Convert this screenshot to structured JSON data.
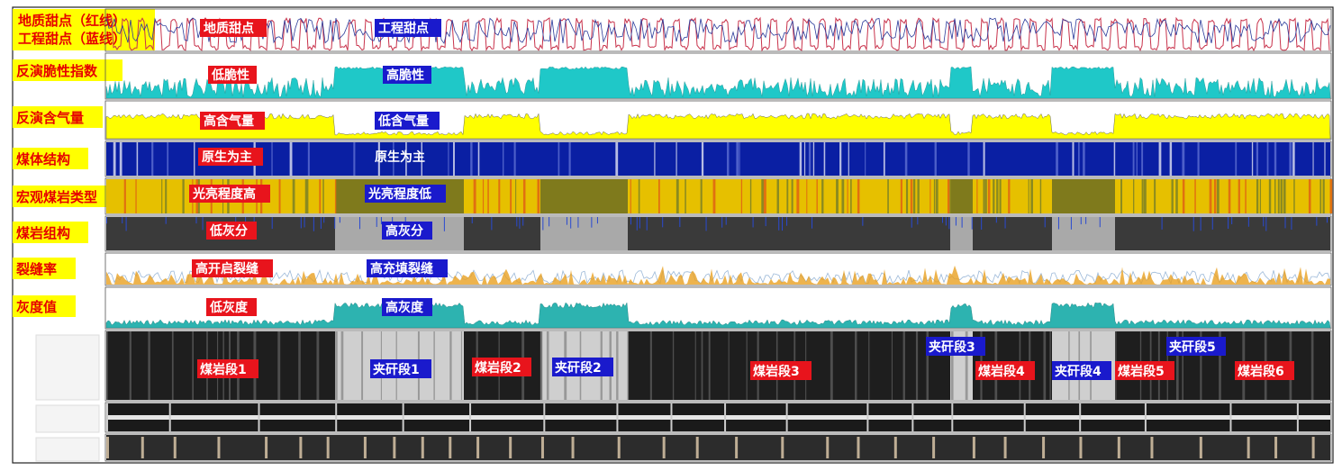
{
  "tracks": [
    {
      "label": "地质甜点（红线）",
      "label2": "工程甜点（蓝线）"
    },
    {
      "label": "反演脆性指数"
    },
    {
      "label": "反演含气量"
    },
    {
      "label": "煤体结构"
    },
    {
      "label": "宏观煤岩类型"
    },
    {
      "label": "煤岩组构"
    },
    {
      "label": "裂缝率"
    },
    {
      "label": "灰度值"
    }
  ],
  "annotations": {
    "sweet_geo": "地质甜点",
    "sweet_eng": "工程甜点",
    "brittle_low": "低脆性",
    "brittle_high": "高脆性",
    "gas_high": "高含气量",
    "gas_low": "低含气量",
    "struct_a": "原生为主",
    "struct_b": "原生为主",
    "lith_high": "光亮程度高",
    "lith_low": "光亮程度低",
    "ash_low": "低灰分",
    "ash_high": "高灰分",
    "frac_open": "高开启裂缝",
    "frac_fill": "高充填裂缝",
    "gray_low": "低灰度",
    "gray_high": "高灰度"
  },
  "core_segments": [
    {
      "label": "煤岩段1",
      "type": "coal"
    },
    {
      "label": "夹矸段1",
      "type": "gangue"
    },
    {
      "label": "煤岩段2",
      "type": "coal"
    },
    {
      "label": "夹矸段2",
      "type": "gangue"
    },
    {
      "label": "煤岩段3",
      "type": "coal"
    },
    {
      "label": "夹矸段3",
      "type": "gangue"
    },
    {
      "label": "煤岩段4",
      "type": "coal"
    },
    {
      "label": "夹矸段4",
      "type": "gangue"
    },
    {
      "label": "煤岩段5",
      "type": "coal"
    },
    {
      "label": "夹矸段5",
      "type": "gangue"
    },
    {
      "label": "煤岩段6",
      "type": "coal"
    }
  ],
  "colors": {
    "label_yellow": "#ffff00",
    "label_red_text": "#e60000",
    "tag_red": "#e8141c",
    "tag_blue": "#1a1acc",
    "geo_curve": "#c8324b",
    "eng_curve": "#2a3a9a",
    "brittle": "#1fc8c8",
    "brittle_high": "#35f0f0",
    "gas": "#ffff00",
    "struct": "#0a1fa3",
    "lith_bright": "#e6c000",
    "lith_dull": "#7f7a1c",
    "ash_dark": "#3a3a3a",
    "ash_light": "#a9a9a9",
    "frac": "#9bb8d8",
    "frac_fill": "#e8a020",
    "gray_curve": "#2db3b0"
  },
  "chart_data": {
    "type": "area",
    "series": [
      {
        "name": "地质甜点（红线）"
      },
      {
        "name": "工程甜点（蓝线）"
      },
      {
        "name": "反演脆性指数"
      },
      {
        "name": "反演含气量"
      },
      {
        "name": "煤体结构"
      },
      {
        "name": "宏观煤岩类型"
      },
      {
        "name": "煤岩组构"
      },
      {
        "name": "裂缝率"
      },
      {
        "name": "灰度值"
      }
    ]
  }
}
